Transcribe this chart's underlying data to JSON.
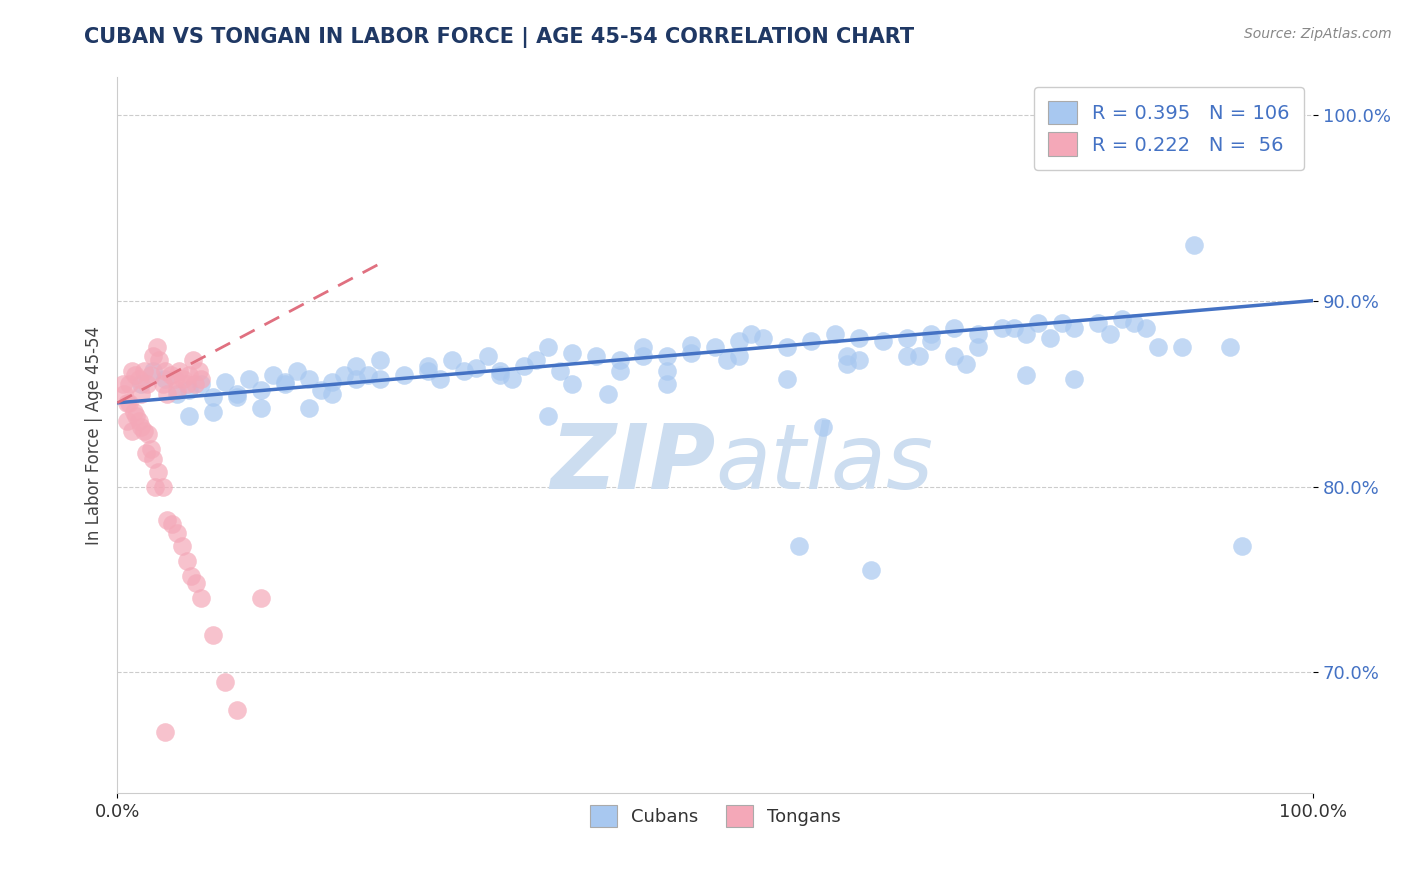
{
  "title": "CUBAN VS TONGAN IN LABOR FORCE | AGE 45-54 CORRELATION CHART",
  "source_text": "Source: ZipAtlas.com",
  "ylabel": "In Labor Force | Age 45-54",
  "xlim": [
    0.0,
    1.0
  ],
  "ylim": [
    0.635,
    1.02
  ],
  "yticks": [
    0.7,
    0.8,
    0.9,
    1.0
  ],
  "ytick_labels": [
    "70.0%",
    "80.0%",
    "90.0%",
    "100.0%"
  ],
  "cuban_R": 0.395,
  "cuban_N": 106,
  "tongan_R": 0.222,
  "tongan_N": 56,
  "cuban_color": "#a8c8f0",
  "tongan_color": "#f4a8b8",
  "cuban_line_color": "#4472c4",
  "tongan_line_color": "#e07080",
  "title_color": "#1f3864",
  "source_color": "#888888",
  "legend_color": "#4472c4",
  "watermark_zip": "ZIP",
  "watermark_atlas": "atlas",
  "watermark_color": "#ccddf0",
  "grid_color": "#cccccc",
  "background_color": "#ffffff",
  "cuban_trendline_x": [
    0.0,
    1.0
  ],
  "cuban_trendline_y": [
    0.845,
    0.9
  ],
  "tongan_trendline_x": [
    0.0,
    0.22
  ],
  "tongan_trendline_y": [
    0.845,
    0.92
  ],
  "cuban_scatter_x": [
    0.02,
    0.03,
    0.04,
    0.05,
    0.06,
    0.07,
    0.08,
    0.09,
    0.1,
    0.11,
    0.12,
    0.13,
    0.14,
    0.15,
    0.16,
    0.17,
    0.18,
    0.19,
    0.2,
    0.22,
    0.24,
    0.26,
    0.28,
    0.3,
    0.32,
    0.34,
    0.35,
    0.36,
    0.38,
    0.4,
    0.42,
    0.44,
    0.46,
    0.48,
    0.5,
    0.52,
    0.53,
    0.54,
    0.56,
    0.58,
    0.6,
    0.62,
    0.64,
    0.66,
    0.68,
    0.7,
    0.72,
    0.74,
    0.75,
    0.77,
    0.79,
    0.8,
    0.82,
    0.84,
    0.85,
    0.32,
    0.37,
    0.21,
    0.27,
    0.51,
    0.56,
    0.61,
    0.67,
    0.41,
    0.46,
    0.71,
    0.76,
    0.14,
    0.18,
    0.22,
    0.08,
    0.12,
    0.06,
    0.1,
    0.38,
    0.42,
    0.46,
    0.62,
    0.66,
    0.72,
    0.78,
    0.83,
    0.87,
    0.9,
    0.93,
    0.94,
    0.86,
    0.89,
    0.61,
    0.57,
    0.33,
    0.29,
    0.16,
    0.2,
    0.44,
    0.48,
    0.68,
    0.76,
    0.8,
    0.52,
    0.36,
    0.59,
    0.63,
    0.26,
    0.31,
    0.7
  ],
  "cuban_scatter_y": [
    0.855,
    0.862,
    0.858,
    0.85,
    0.852,
    0.855,
    0.848,
    0.856,
    0.85,
    0.858,
    0.852,
    0.86,
    0.855,
    0.862,
    0.858,
    0.852,
    0.856,
    0.86,
    0.865,
    0.868,
    0.86,
    0.862,
    0.868,
    0.864,
    0.862,
    0.865,
    0.868,
    0.875,
    0.872,
    0.87,
    0.868,
    0.875,
    0.87,
    0.872,
    0.875,
    0.878,
    0.882,
    0.88,
    0.875,
    0.878,
    0.882,
    0.88,
    0.878,
    0.88,
    0.882,
    0.885,
    0.882,
    0.885,
    0.885,
    0.888,
    0.888,
    0.885,
    0.888,
    0.89,
    0.888,
    0.86,
    0.862,
    0.86,
    0.858,
    0.868,
    0.858,
    0.866,
    0.87,
    0.85,
    0.855,
    0.866,
    0.86,
    0.856,
    0.85,
    0.858,
    0.84,
    0.842,
    0.838,
    0.848,
    0.855,
    0.862,
    0.862,
    0.868,
    0.87,
    0.875,
    0.88,
    0.882,
    0.875,
    0.93,
    0.875,
    0.768,
    0.885,
    0.875,
    0.87,
    0.768,
    0.858,
    0.862,
    0.842,
    0.858,
    0.87,
    0.876,
    0.878,
    0.882,
    0.858,
    0.87,
    0.838,
    0.832,
    0.755,
    0.865,
    0.87,
    0.87
  ],
  "tongan_scatter_x": [
    0.005,
    0.008,
    0.01,
    0.012,
    0.015,
    0.018,
    0.02,
    0.022,
    0.025,
    0.028,
    0.03,
    0.033,
    0.035,
    0.038,
    0.04,
    0.042,
    0.045,
    0.048,
    0.05,
    0.052,
    0.055,
    0.058,
    0.06,
    0.063,
    0.065,
    0.068,
    0.07,
    0.008,
    0.012,
    0.016,
    0.02,
    0.024,
    0.028,
    0.032,
    0.006,
    0.01,
    0.014,
    0.018,
    0.022,
    0.026,
    0.03,
    0.034,
    0.038,
    0.042,
    0.046,
    0.05,
    0.054,
    0.058,
    0.062,
    0.066,
    0.07,
    0.08,
    0.09,
    0.1,
    0.04,
    0.12
  ],
  "tongan_scatter_y": [
    0.855,
    0.845,
    0.855,
    0.862,
    0.86,
    0.858,
    0.85,
    0.862,
    0.855,
    0.86,
    0.87,
    0.875,
    0.868,
    0.855,
    0.862,
    0.85,
    0.86,
    0.858,
    0.852,
    0.862,
    0.858,
    0.855,
    0.86,
    0.868,
    0.855,
    0.862,
    0.858,
    0.835,
    0.83,
    0.838,
    0.832,
    0.818,
    0.82,
    0.8,
    0.85,
    0.845,
    0.84,
    0.835,
    0.83,
    0.828,
    0.815,
    0.808,
    0.8,
    0.782,
    0.78,
    0.775,
    0.768,
    0.76,
    0.752,
    0.748,
    0.74,
    0.72,
    0.695,
    0.68,
    0.668,
    0.74
  ]
}
